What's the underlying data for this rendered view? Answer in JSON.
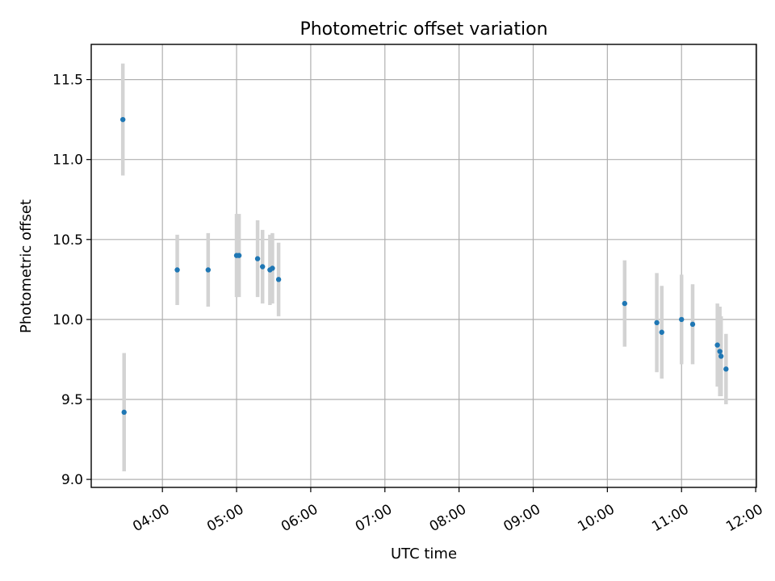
{
  "chart_data": {
    "type": "scatter",
    "title": "Photometric offset variation",
    "xlabel": "UTC time",
    "ylabel": "Photometric offset",
    "x_tick_labels": [
      "04:00",
      "05:00",
      "06:00",
      "07:00",
      "08:00",
      "09:00",
      "10:00",
      "11:00",
      "12:00"
    ],
    "x_ticks_hours": [
      4,
      5,
      6,
      7,
      8,
      9,
      10,
      11,
      12
    ],
    "y_tick_labels": [
      "9.0",
      "9.5",
      "10.0",
      "10.5",
      "11.0",
      "11.5"
    ],
    "y_ticks": [
      9.0,
      9.5,
      10.0,
      10.5,
      11.0,
      11.5
    ],
    "xlim_hours": [
      3.04,
      12.01
    ],
    "ylim": [
      8.95,
      11.72
    ],
    "grid": true,
    "colors": {
      "point": "#1f77b4",
      "errorbar": "#d3d3d3",
      "grid": "#b0b0b0"
    },
    "points": [
      {
        "time": "03:28",
        "y": 11.25,
        "err": 0.35
      },
      {
        "time": "03:29",
        "y": 9.42,
        "err": 0.37
      },
      {
        "time": "04:12",
        "y": 10.31,
        "err": 0.22
      },
      {
        "time": "04:37",
        "y": 10.31,
        "err": 0.23
      },
      {
        "time": "05:00",
        "y": 10.4,
        "err": 0.26
      },
      {
        "time": "05:02",
        "y": 10.4,
        "err": 0.26
      },
      {
        "time": "05:17",
        "y": 10.38,
        "err": 0.24
      },
      {
        "time": "05:21",
        "y": 10.33,
        "err": 0.23
      },
      {
        "time": "05:27",
        "y": 10.31,
        "err": 0.22
      },
      {
        "time": "05:29",
        "y": 10.32,
        "err": 0.22
      },
      {
        "time": "05:34",
        "y": 10.25,
        "err": 0.23
      },
      {
        "time": "10:14",
        "y": 10.1,
        "err": 0.27
      },
      {
        "time": "10:40",
        "y": 9.98,
        "err": 0.31
      },
      {
        "time": "10:44",
        "y": 9.92,
        "err": 0.29
      },
      {
        "time": "11:00",
        "y": 10.0,
        "err": 0.28
      },
      {
        "time": "11:09",
        "y": 9.97,
        "err": 0.25
      },
      {
        "time": "11:29",
        "y": 9.84,
        "err": 0.26
      },
      {
        "time": "11:31",
        "y": 9.8,
        "err": 0.28
      },
      {
        "time": "11:32",
        "y": 9.77,
        "err": 0.25
      },
      {
        "time": "11:36",
        "y": 9.69,
        "err": 0.22
      }
    ]
  }
}
